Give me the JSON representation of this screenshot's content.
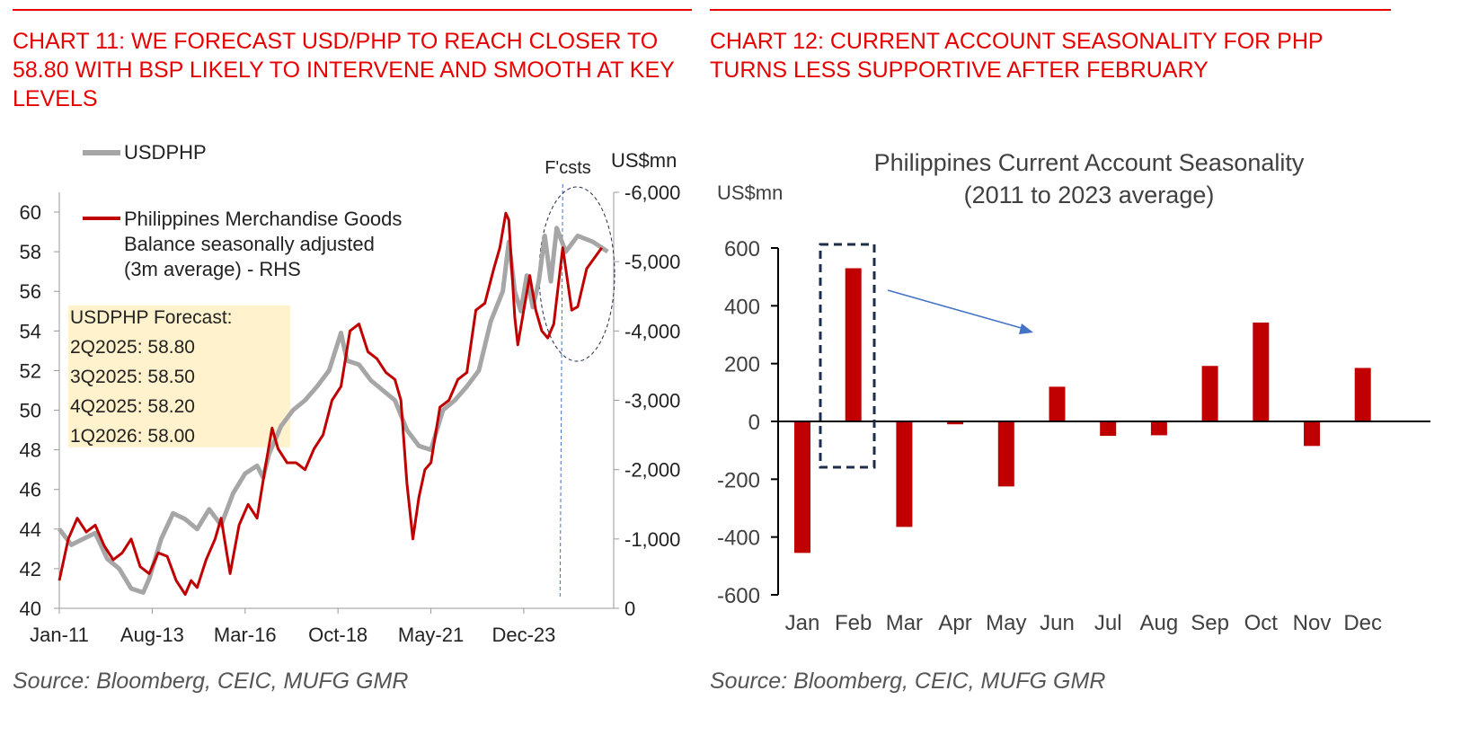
{
  "chart11": {
    "title": "CHART 11: WE FORECAST USD/PHP TO REACH CLOSER TO 58.80 WITH BSP LIKELY TO INTERVENE AND SMOOTH AT KEY LEVELS",
    "source": "Source: Bloomberg, CEIC, MUFG GMR"
  },
  "chart12": {
    "title": "CHART 12: CURRENT ACCOUNT SEASONALITY FOR PHP TURNS LESS SUPPORTIVE AFTER FEBRUARY",
    "source": "Source: Bloomberg, CEIC, MUFG GMR"
  },
  "chart_data": [
    {
      "type": "line",
      "legend": [
        "USDPHP",
        "Philippines Merchandise Goods",
        "Balance seasonally adjusted",
        "(3m average) - RHS"
      ],
      "rhs_unit": "US$mn",
      "forecast_label": "F'csts",
      "forecast_box": [
        "USDPHP Forecast:",
        "2Q2025: 58.80",
        "3Q2025: 58.50",
        "4Q2025: 58.20",
        "1Q2026: 58.00"
      ],
      "x_ticks": [
        "Jan-11",
        "Aug-13",
        "Mar-16",
        "Oct-18",
        "May-21",
        "Dec-23"
      ],
      "x_tick_months": [
        0,
        31,
        62,
        93,
        124,
        155
      ],
      "xlim_months": [
        0,
        185
      ],
      "y_left_ticks": [
        "40",
        "42",
        "44",
        "46",
        "48",
        "50",
        "52",
        "54",
        "56",
        "58",
        "60"
      ],
      "ylim_left": [
        40,
        61
      ],
      "y_right_ticks": [
        "0",
        "-1,000",
        "-2,000",
        "-3,000",
        "-4,000",
        "-5,000",
        "-6,000"
      ],
      "ylim_right": [
        0,
        -6000
      ],
      "forecast_start_month": 168,
      "series": [
        {
          "name": "USDPHP",
          "axis": "left",
          "color": "#a6a6a6",
          "points": [
            [
              0,
              44.0
            ],
            [
              4,
              43.2
            ],
            [
              8,
              43.5
            ],
            [
              12,
              43.8
            ],
            [
              16,
              42.5
            ],
            [
              20,
              42.0
            ],
            [
              24,
              41.0
            ],
            [
              28,
              40.8
            ],
            [
              30,
              41.5
            ],
            [
              34,
              43.5
            ],
            [
              38,
              44.8
            ],
            [
              42,
              44.5
            ],
            [
              46,
              44.0
            ],
            [
              50,
              45.0
            ],
            [
              54,
              44.2
            ],
            [
              58,
              45.8
            ],
            [
              62,
              46.8
            ],
            [
              66,
              47.2
            ],
            [
              68,
              46.6
            ],
            [
              70,
              47.8
            ],
            [
              74,
              49.2
            ],
            [
              78,
              50.0
            ],
            [
              82,
              50.5
            ],
            [
              86,
              51.2
            ],
            [
              90,
              52.0
            ],
            [
              94,
              53.9
            ],
            [
              96,
              52.5
            ],
            [
              100,
              52.3
            ],
            [
              104,
              51.5
            ],
            [
              108,
              51.0
            ],
            [
              112,
              50.5
            ],
            [
              116,
              49.0
            ],
            [
              120,
              48.2
            ],
            [
              124,
              48.0
            ],
            [
              128,
              50.0
            ],
            [
              132,
              50.5
            ],
            [
              136,
              51.2
            ],
            [
              140,
              52.0
            ],
            [
              144,
              54.5
            ],
            [
              148,
              56.0
            ],
            [
              150,
              58.5
            ],
            [
              152,
              56.0
            ],
            [
              154,
              55.0
            ],
            [
              156,
              56.8
            ],
            [
              158,
              55.2
            ],
            [
              160,
              56.5
            ],
            [
              162,
              58.8
            ],
            [
              164,
              56.5
            ],
            [
              166,
              59.2
            ],
            [
              169,
              58.0
            ],
            [
              173,
              58.8
            ],
            [
              178,
              58.5
            ],
            [
              183,
              58.0
            ]
          ]
        },
        {
          "name": "Philippines Merchandise Goods Balance seasonally adjusted (3m average) - RHS",
          "axis": "right",
          "color": "#c00000",
          "points": [
            [
              0,
              -400
            ],
            [
              3,
              -1000
            ],
            [
              6,
              -1300
            ],
            [
              9,
              -1100
            ],
            [
              12,
              -1200
            ],
            [
              15,
              -900
            ],
            [
              18,
              -700
            ],
            [
              21,
              -800
            ],
            [
              24,
              -1000
            ],
            [
              27,
              -600
            ],
            [
              30,
              -500
            ],
            [
              33,
              -800
            ],
            [
              36,
              -750
            ],
            [
              39,
              -400
            ],
            [
              42,
              -200
            ],
            [
              44,
              -400
            ],
            [
              46,
              -300
            ],
            [
              49,
              -700
            ],
            [
              52,
              -1000
            ],
            [
              54,
              -1300
            ],
            [
              57,
              -500
            ],
            [
              60,
              -1200
            ],
            [
              63,
              -1500
            ],
            [
              66,
              -1300
            ],
            [
              69,
              -2100
            ],
            [
              71,
              -2600
            ],
            [
              73,
              -2300
            ],
            [
              76,
              -2100
            ],
            [
              79,
              -2100
            ],
            [
              82,
              -2000
            ],
            [
              85,
              -2300
            ],
            [
              88,
              -2500
            ],
            [
              91,
              -3000
            ],
            [
              94,
              -3200
            ],
            [
              97,
              -4000
            ],
            [
              100,
              -4100
            ],
            [
              103,
              -3700
            ],
            [
              106,
              -3600
            ],
            [
              109,
              -3400
            ],
            [
              112,
              -3300
            ],
            [
              114,
              -3000
            ],
            [
              116,
              -1800
            ],
            [
              118,
              -1000
            ],
            [
              120,
              -1600
            ],
            [
              122,
              -2000
            ],
            [
              124,
              -2100
            ],
            [
              127,
              -2900
            ],
            [
              130,
              -3000
            ],
            [
              133,
              -3300
            ],
            [
              136,
              -3400
            ],
            [
              139,
              -4300
            ],
            [
              142,
              -4400
            ],
            [
              145,
              -4900
            ],
            [
              147,
              -5200
            ],
            [
              149,
              -5700
            ],
            [
              150,
              -5600
            ],
            [
              152,
              -4200
            ],
            [
              153,
              -3800
            ],
            [
              155,
              -4300
            ],
            [
              157,
              -4800
            ],
            [
              159,
              -4300
            ],
            [
              161,
              -4000
            ],
            [
              163,
              -3900
            ],
            [
              165,
              -4100
            ],
            [
              168,
              -5200
            ],
            [
              171,
              -4300
            ],
            [
              173,
              -4350
            ],
            [
              176,
              -4900
            ],
            [
              181,
              -5200
            ]
          ]
        }
      ]
    },
    {
      "type": "bar",
      "title": "Philippines Current Account Seasonality",
      "subtitle": "(2011 to 2023 average)",
      "ylabel": "US$mn",
      "categories": [
        "Jan",
        "Feb",
        "Mar",
        "Apr",
        "May",
        "Jun",
        "Jul",
        "Aug",
        "Sep",
        "Oct",
        "Nov",
        "Dec"
      ],
      "values": [
        -455,
        530,
        -365,
        -10,
        -225,
        120,
        -50,
        -48,
        192,
        342,
        -85,
        185
      ],
      "ylim": [
        -600,
        600
      ],
      "y_ticks": [
        "-600",
        "-400",
        "-200",
        "0",
        "200",
        "400",
        "600"
      ],
      "color": "#c00000",
      "highlight": "Feb"
    }
  ]
}
